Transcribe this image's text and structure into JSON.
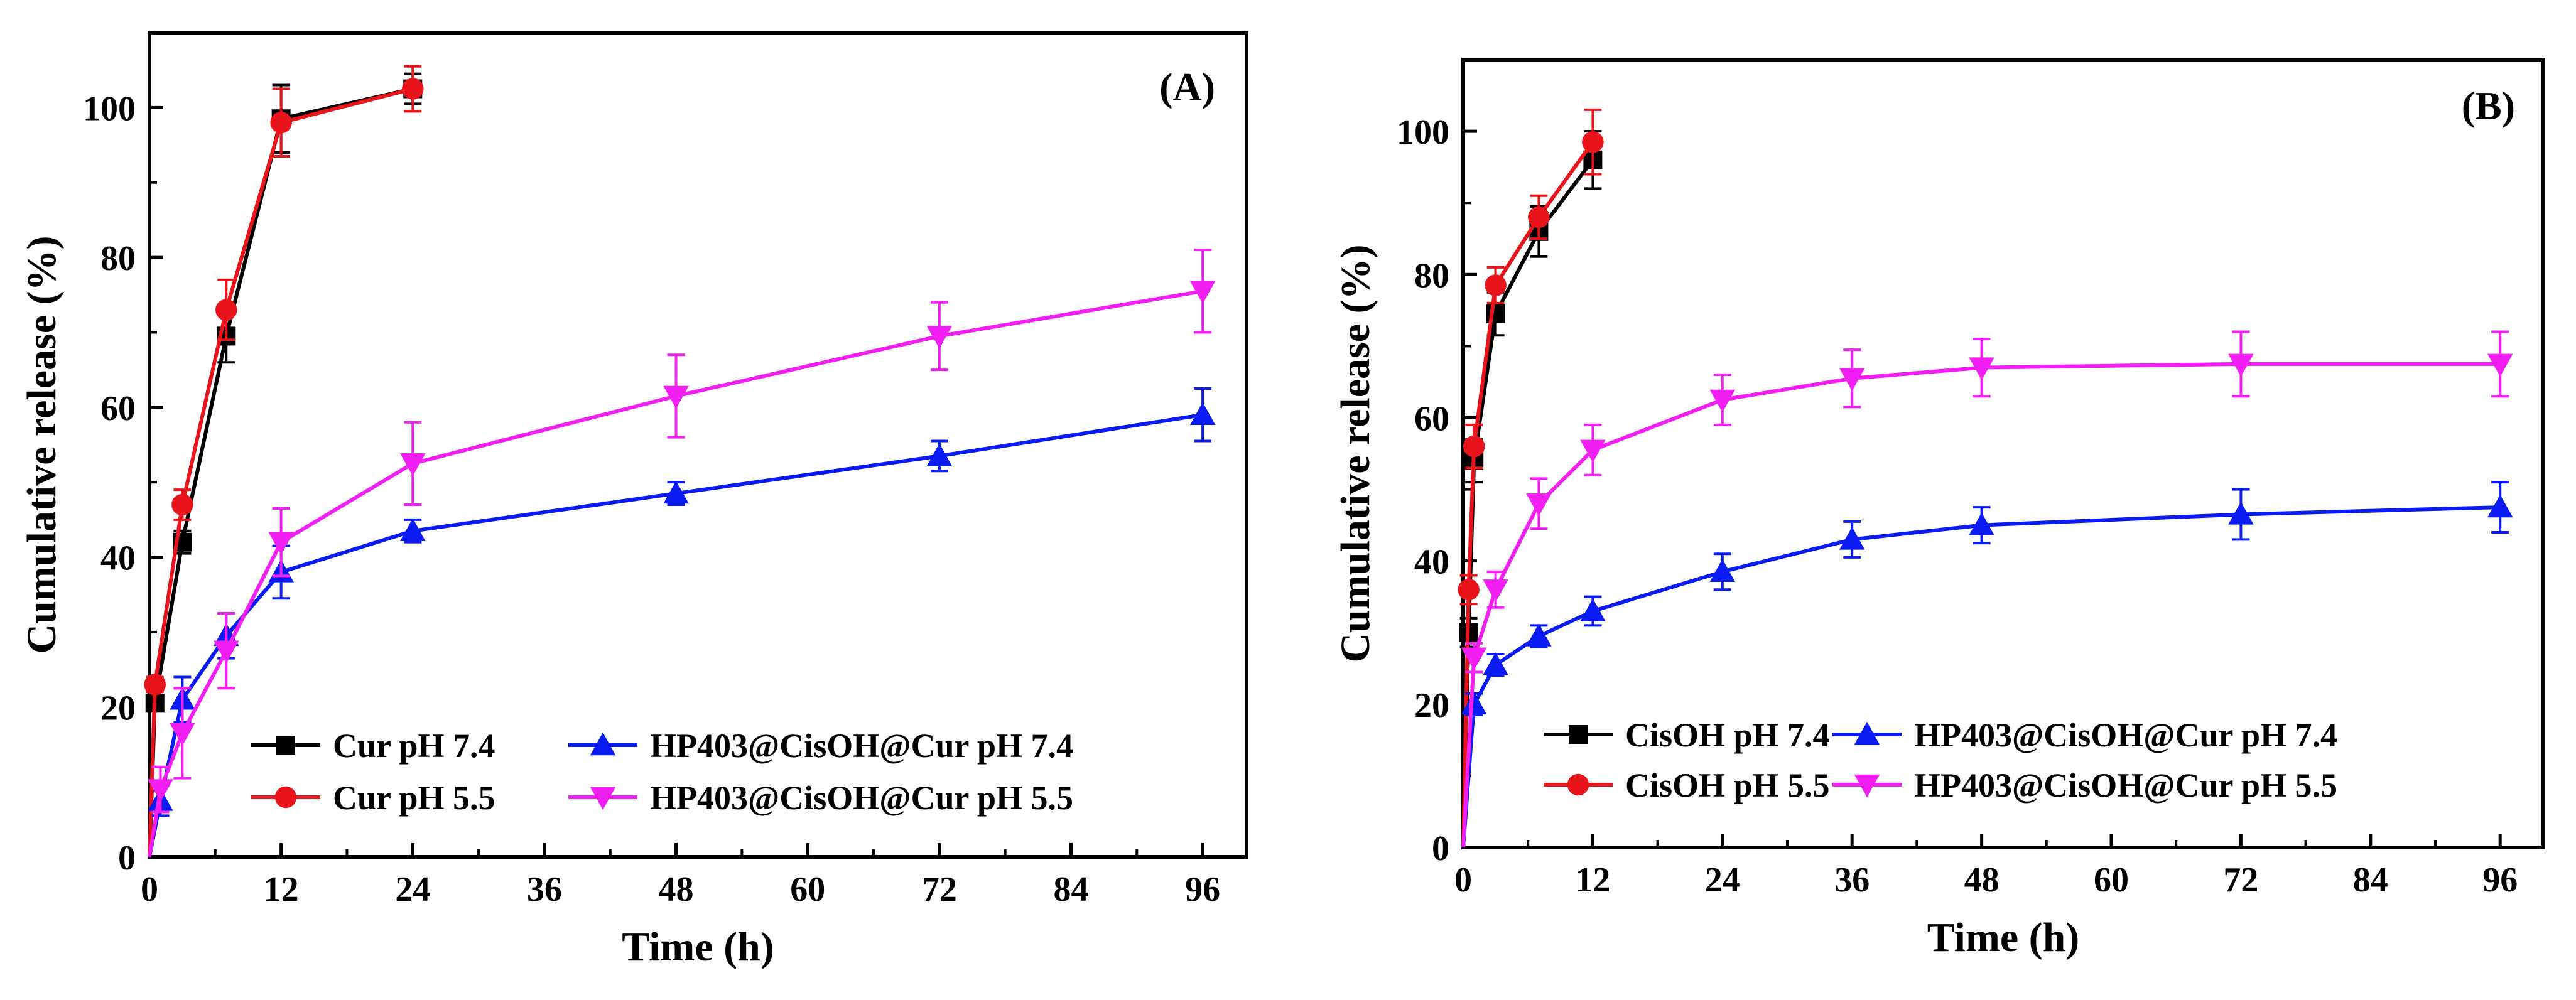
{
  "chart_data": [
    {
      "type": "line",
      "panel_label": "(A)",
      "xlabel": "Time (h)",
      "ylabel": "Cumulative release (%)",
      "xlim": [
        0,
        100
      ],
      "ylim": [
        0,
        110
      ],
      "xticks": [
        0,
        12,
        24,
        36,
        48,
        60,
        72,
        84,
        96
      ],
      "yticks": [
        0,
        20,
        40,
        60,
        80,
        100
      ],
      "legend_position": "bottom",
      "series": [
        {
          "name": "Cur pH 7.4",
          "color": "#000000",
          "marker": "square",
          "x": [
            0,
            0.5,
            3,
            7,
            12,
            24
          ],
          "y": [
            0,
            20.5,
            42,
            69.5,
            98.5,
            102.5
          ],
          "err": [
            0,
            1,
            1.5,
            3.5,
            4.5,
            2
          ]
        },
        {
          "name": "Cur pH 5.5",
          "color": "#e8141b",
          "marker": "circle",
          "x": [
            0,
            0.5,
            3,
            7,
            12,
            24
          ],
          "y": [
            0,
            23,
            47,
            73,
            98,
            102.5
          ],
          "err": [
            0,
            1,
            2,
            4,
            4.5,
            3
          ]
        },
        {
          "name": "HP403@CisOH@Cur pH 7.4",
          "color": "#0b1cf2",
          "marker": "triangle-up",
          "x": [
            0,
            1,
            3,
            7,
            12,
            24,
            48,
            72,
            96
          ],
          "y": [
            0,
            7.5,
            21,
            29.5,
            38,
            43.5,
            48.5,
            53.5,
            59
          ],
          "err": [
            0,
            2,
            3,
            3,
            3.5,
            1.5,
            1.5,
            2,
            3.5
          ]
        },
        {
          "name": "HP403@CisOH@Cur pH 5.5",
          "color": "#f21ff2",
          "marker": "triangle-down",
          "x": [
            0,
            1,
            3,
            7,
            12,
            24,
            48,
            72,
            96
          ],
          "y": [
            0,
            9,
            16.5,
            27.5,
            42,
            52.5,
            61.5,
            69.5,
            75.5
          ],
          "err": [
            0,
            3,
            6,
            5,
            4.5,
            5.5,
            5.5,
            4.5,
            5.5
          ]
        }
      ]
    },
    {
      "type": "line",
      "panel_label": "(B)",
      "xlabel": "Time (h)",
      "ylabel": "Cumulative release (%)",
      "xlim": [
        0,
        100
      ],
      "ylim": [
        0,
        110
      ],
      "xticks": [
        0,
        12,
        24,
        36,
        48,
        60,
        72,
        84,
        96
      ],
      "yticks": [
        0,
        20,
        40,
        60,
        80,
        100
      ],
      "legend_position": "bottom",
      "series": [
        {
          "name": "CisOH pH 7.4",
          "color": "#000000",
          "marker": "square",
          "x": [
            0,
            0.5,
            1,
            3,
            7,
            12
          ],
          "y": [
            0,
            30,
            54,
            74.5,
            86,
            96
          ],
          "err": [
            0,
            2,
            3,
            3,
            3.5,
            4
          ]
        },
        {
          "name": "CisOH pH 5.5",
          "color": "#e8141b",
          "marker": "circle",
          "x": [
            0,
            0.5,
            1,
            3,
            7,
            12
          ],
          "y": [
            0,
            36,
            56,
            78.5,
            88,
            98.5
          ],
          "err": [
            0,
            2,
            3,
            2.5,
            3,
            4.5
          ]
        },
        {
          "name": "HP403@CisOH@Cur pH 7.4",
          "color": "#0b1cf2",
          "marker": "triangle-up",
          "x": [
            0,
            1,
            3,
            7,
            12,
            24,
            36,
            48,
            72,
            96
          ],
          "y": [
            0,
            20,
            25.5,
            29.5,
            33,
            38.5,
            43,
            45,
            46.5,
            47.5
          ],
          "err": [
            0,
            1.5,
            1.5,
            1.5,
            2,
            2.5,
            2.5,
            2.5,
            3.5,
            3.5
          ]
        },
        {
          "name": "HP403@CisOH@Cur pH 5.5",
          "color": "#f21ff2",
          "marker": "triangle-down",
          "x": [
            0,
            1,
            3,
            7,
            12,
            24,
            36,
            48,
            72,
            96
          ],
          "y": [
            0,
            26.5,
            36,
            48,
            55.5,
            62.5,
            65.5,
            67,
            67.5,
            67.5
          ],
          "err": [
            0,
            2,
            2.5,
            3.5,
            3.5,
            3.5,
            4,
            4,
            4.5,
            4.5
          ]
        }
      ]
    }
  ]
}
